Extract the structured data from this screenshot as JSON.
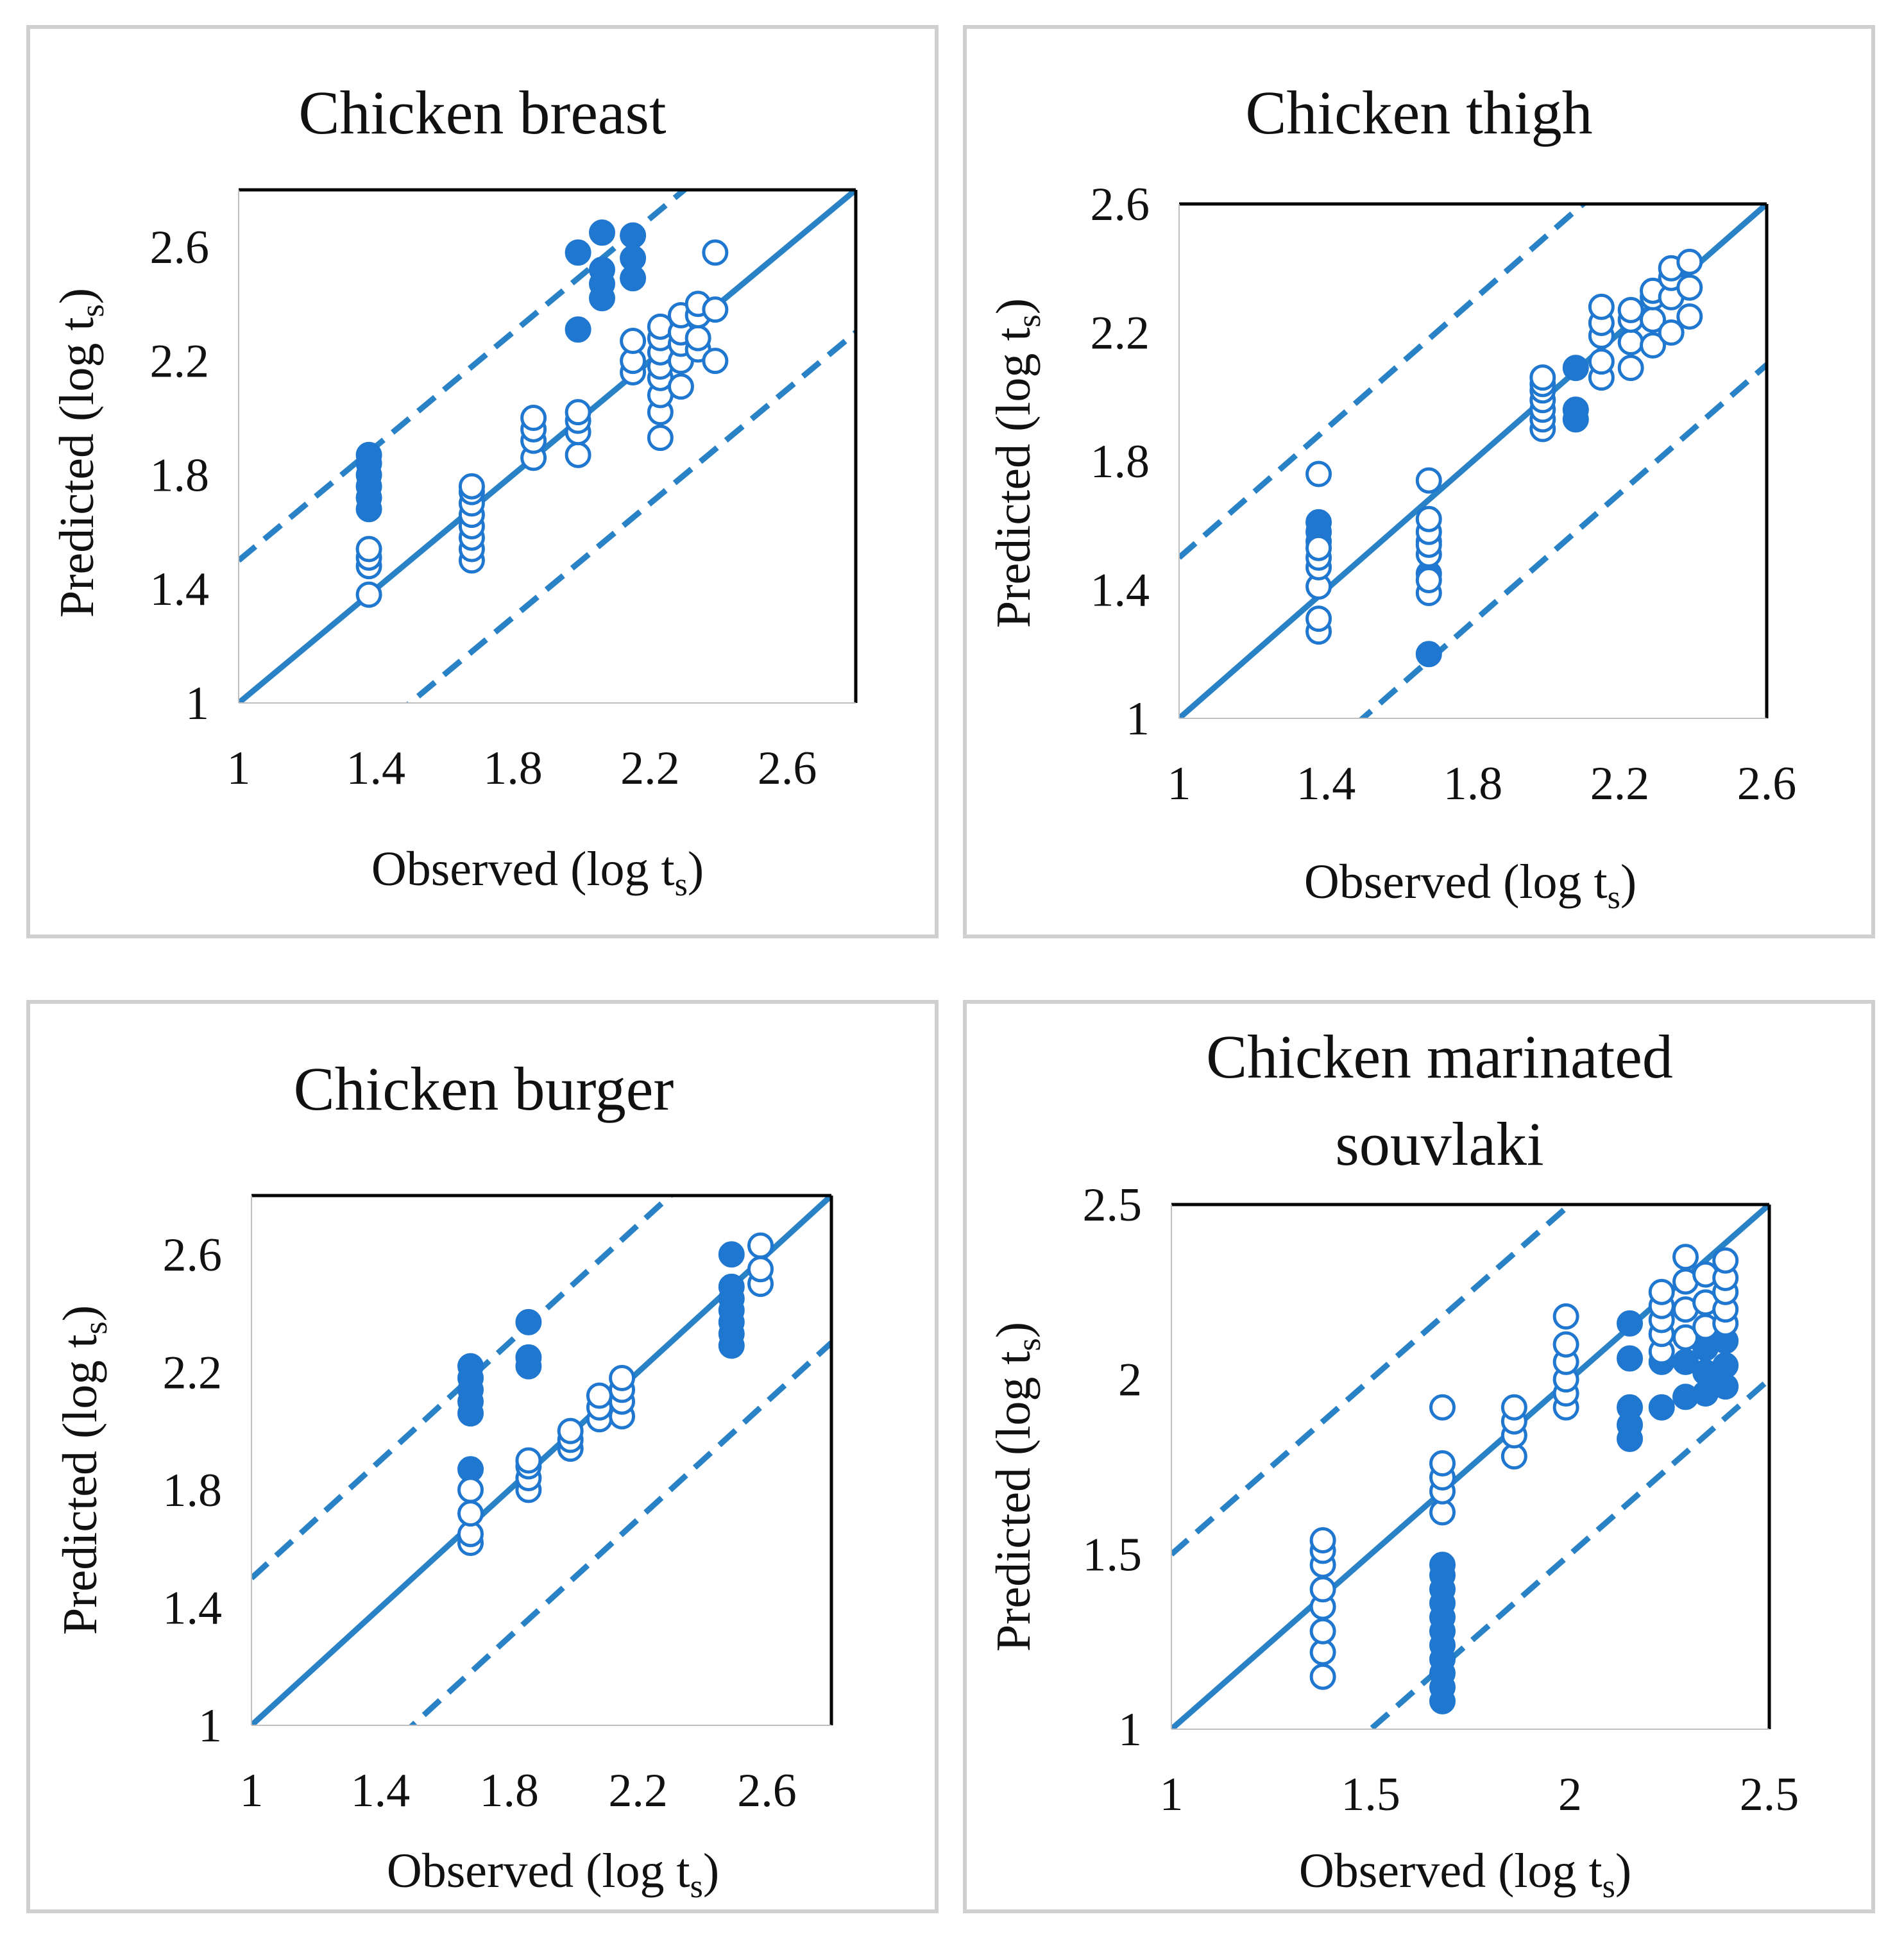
{
  "colors": {
    "marker": "#1f77d0",
    "ideal_line": "#2a82c6",
    "frame": "#d0d0d0",
    "axis": "#000000"
  },
  "chart_data": [
    {
      "type": "scatter",
      "title": [
        "Chicken breast"
      ],
      "xlabel": {
        "main": "Observed (log t",
        "sub": "s",
        "close": ")"
      },
      "ylabel": {
        "main": "Predicted (log t",
        "sub": "s",
        "close": ")"
      },
      "xlim": [
        1,
        2.8
      ],
      "ylim": [
        1,
        2.8
      ],
      "xticks": [
        "1",
        "1.4",
        "1.8",
        "2.2",
        "2.6"
      ],
      "yticks": [
        "1",
        "1.4",
        "1.8",
        "2.2",
        "2.6"
      ],
      "lines": [
        {
          "name": "line of equivalence",
          "offset": 0,
          "style": "solid"
        },
        {
          "name": "upper bound",
          "offset": 0.5,
          "style": "dashed"
        },
        {
          "name": "lower bound",
          "offset": -0.5,
          "style": "dashed"
        }
      ],
      "series": [
        {
          "name": "filled",
          "filled": true,
          "points": [
            [
              1.38,
              1.68
            ],
            [
              1.38,
              1.72
            ],
            [
              1.38,
              1.76
            ],
            [
              1.38,
              1.8
            ],
            [
              1.38,
              1.84
            ],
            [
              1.38,
              1.87
            ],
            [
              1.99,
              2.58
            ],
            [
              1.99,
              2.31
            ],
            [
              2.06,
              2.65
            ],
            [
              2.06,
              2.52
            ],
            [
              2.06,
              2.47
            ],
            [
              2.06,
              2.42
            ],
            [
              2.15,
              2.64
            ],
            [
              2.15,
              2.56
            ],
            [
              2.15,
              2.49
            ]
          ]
        },
        {
          "name": "open",
          "filled": false,
          "points": [
            [
              1.38,
              1.38
            ],
            [
              1.38,
              1.48
            ],
            [
              1.38,
              1.51
            ],
            [
              1.38,
              1.54
            ],
            [
              1.68,
              1.5
            ],
            [
              1.68,
              1.54
            ],
            [
              1.68,
              1.58
            ],
            [
              1.68,
              1.62
            ],
            [
              1.68,
              1.66
            ],
            [
              1.68,
              1.7
            ],
            [
              1.68,
              1.74
            ],
            [
              1.68,
              1.76
            ],
            [
              1.86,
              1.86
            ],
            [
              1.86,
              1.92
            ],
            [
              1.86,
              1.96
            ],
            [
              1.86,
              2.0
            ],
            [
              1.99,
              1.87
            ],
            [
              1.99,
              1.95
            ],
            [
              1.99,
              1.99
            ],
            [
              1.99,
              2.02
            ],
            [
              2.15,
              2.16
            ],
            [
              2.15,
              2.2
            ],
            [
              2.15,
              2.27
            ],
            [
              2.23,
              1.93
            ],
            [
              2.23,
              2.02
            ],
            [
              2.23,
              2.08
            ],
            [
              2.23,
              2.14
            ],
            [
              2.23,
              2.18
            ],
            [
              2.23,
              2.23
            ],
            [
              2.23,
              2.28
            ],
            [
              2.23,
              2.32
            ],
            [
              2.29,
              2.11
            ],
            [
              2.29,
              2.2
            ],
            [
              2.29,
              2.26
            ],
            [
              2.29,
              2.3
            ],
            [
              2.29,
              2.36
            ],
            [
              2.34,
              2.24
            ],
            [
              2.34,
              2.28
            ],
            [
              2.34,
              2.36
            ],
            [
              2.34,
              2.4
            ],
            [
              2.39,
              2.2
            ],
            [
              2.39,
              2.38
            ],
            [
              2.39,
              2.58
            ]
          ]
        }
      ]
    },
    {
      "type": "scatter",
      "title": [
        "Chicken thigh"
      ],
      "xlabel": {
        "main": "Observed (log t",
        "sub": "s",
        "close": ")"
      },
      "ylabel": {
        "main": "Predicted (log t",
        "sub": "s",
        "close": ")"
      },
      "xlim": [
        1,
        2.6
      ],
      "ylim": [
        1,
        2.6
      ],
      "xticks": [
        "1",
        "1.4",
        "1.8",
        "2.2",
        "2.6"
      ],
      "yticks": [
        "1",
        "1.4",
        "1.8",
        "2.2",
        "2.6"
      ],
      "lines": [
        {
          "name": "line of equivalence",
          "offset": 0,
          "style": "solid"
        },
        {
          "name": "upper bound",
          "offset": 0.5,
          "style": "dashed"
        },
        {
          "name": "lower bound",
          "offset": -0.5,
          "style": "dashed"
        }
      ],
      "series": [
        {
          "name": "filled",
          "filled": true,
          "points": [
            [
              1.38,
              1.58
            ],
            [
              1.38,
              1.61
            ],
            [
              1.38,
              1.55
            ],
            [
              1.68,
              1.2
            ],
            [
              1.68,
              1.55
            ],
            [
              1.68,
              1.45
            ],
            [
              2.08,
              2.09
            ],
            [
              2.08,
              1.96
            ],
            [
              2.08,
              1.93
            ]
          ]
        },
        {
          "name": "open",
          "filled": false,
          "points": [
            [
              1.38,
              1.27
            ],
            [
              1.38,
              1.31
            ],
            [
              1.38,
              1.41
            ],
            [
              1.38,
              1.47
            ],
            [
              1.38,
              1.5
            ],
            [
              1.38,
              1.53
            ],
            [
              1.38,
              1.76
            ],
            [
              1.68,
              1.39
            ],
            [
              1.68,
              1.43
            ],
            [
              1.68,
              1.51
            ],
            [
              1.68,
              1.54
            ],
            [
              1.68,
              1.58
            ],
            [
              1.68,
              1.62
            ],
            [
              1.68,
              1.74
            ],
            [
              1.99,
              1.9
            ],
            [
              1.99,
              1.93
            ],
            [
              1.99,
              1.96
            ],
            [
              1.99,
              1.99
            ],
            [
              1.99,
              2.02
            ],
            [
              1.99,
              2.04
            ],
            [
              1.99,
              2.06
            ],
            [
              2.15,
              2.06
            ],
            [
              2.15,
              2.11
            ],
            [
              2.15,
              2.19
            ],
            [
              2.15,
              2.23
            ],
            [
              2.15,
              2.28
            ],
            [
              2.23,
              2.09
            ],
            [
              2.23,
              2.17
            ],
            [
              2.23,
              2.24
            ],
            [
              2.23,
              2.27
            ],
            [
              2.29,
              2.16
            ],
            [
              2.29,
              2.24
            ],
            [
              2.29,
              2.31
            ],
            [
              2.29,
              2.33
            ],
            [
              2.34,
              2.2
            ],
            [
              2.34,
              2.31
            ],
            [
              2.34,
              2.37
            ],
            [
              2.34,
              2.4
            ],
            [
              2.39,
              2.25
            ],
            [
              2.39,
              2.34
            ],
            [
              2.39,
              2.42
            ]
          ]
        }
      ]
    },
    {
      "type": "scatter",
      "title": [
        "Chicken burger"
      ],
      "xlabel": {
        "main": "Observed (log t",
        "sub": "s",
        "close": ")"
      },
      "ylabel": {
        "main": "Predicted (log t",
        "sub": "s",
        "close": ")"
      },
      "xlim": [
        1,
        2.8
      ],
      "ylim": [
        1,
        2.8
      ],
      "xticks": [
        "1",
        "1.4",
        "1.8",
        "2.2",
        "2.6"
      ],
      "yticks": [
        "1",
        "1.4",
        "1.8",
        "2.2",
        "2.6"
      ],
      "lines": [
        {
          "name": "line of equivalence",
          "offset": 0,
          "style": "solid"
        },
        {
          "name": "upper bound",
          "offset": 0.5,
          "style": "dashed"
        },
        {
          "name": "lower bound",
          "offset": -0.5,
          "style": "dashed"
        }
      ],
      "series": [
        {
          "name": "filled",
          "filled": true,
          "points": [
            [
              1.68,
              2.06
            ],
            [
              1.68,
              2.1
            ],
            [
              1.68,
              2.14
            ],
            [
              1.68,
              2.18
            ],
            [
              1.68,
              2.22
            ],
            [
              1.68,
              1.87
            ],
            [
              1.86,
              2.37
            ],
            [
              1.86,
              2.25
            ],
            [
              1.86,
              2.22
            ],
            [
              2.49,
              2.29
            ],
            [
              2.49,
              2.33
            ],
            [
              2.49,
              2.37
            ],
            [
              2.49,
              2.41
            ],
            [
              2.49,
              2.45
            ],
            [
              2.49,
              2.49
            ],
            [
              2.49,
              2.6
            ]
          ]
        },
        {
          "name": "open",
          "filled": false,
          "points": [
            [
              1.68,
              1.62
            ],
            [
              1.68,
              1.65
            ],
            [
              1.68,
              1.72
            ],
            [
              1.68,
              1.8
            ],
            [
              1.86,
              1.8
            ],
            [
              1.86,
              1.84
            ],
            [
              1.86,
              1.88
            ],
            [
              1.86,
              1.9
            ],
            [
              1.99,
              1.94
            ],
            [
              1.99,
              1.97
            ],
            [
              1.99,
              2.0
            ],
            [
              2.08,
              2.04
            ],
            [
              2.08,
              2.08
            ],
            [
              2.08,
              2.12
            ],
            [
              2.15,
              2.05
            ],
            [
              2.15,
              2.1
            ],
            [
              2.15,
              2.14
            ],
            [
              2.15,
              2.18
            ],
            [
              2.58,
              2.5
            ],
            [
              2.58,
              2.55
            ],
            [
              2.58,
              2.63
            ]
          ]
        }
      ]
    },
    {
      "type": "scatter",
      "title": [
        "Chicken marinated",
        "souvlaki"
      ],
      "xlabel": {
        "main": "Observed (log t",
        "sub": "s",
        "close": ")"
      },
      "ylabel": {
        "main": "Predicted (log t",
        "sub": "s",
        "close": ")"
      },
      "xlim": [
        1,
        2.5
      ],
      "ylim": [
        1,
        2.5
      ],
      "xticks": [
        "1",
        "1.5",
        "2",
        "2.5"
      ],
      "yticks": [
        "1",
        "1.5",
        "2",
        "2.5"
      ],
      "lines": [
        {
          "name": "line of equivalence",
          "offset": 0,
          "style": "solid"
        },
        {
          "name": "upper bound",
          "offset": 0.5,
          "style": "dashed"
        },
        {
          "name": "lower bound",
          "offset": -0.5,
          "style": "dashed"
        }
      ],
      "series": [
        {
          "name": "filled",
          "filled": true,
          "points": [
            [
              1.68,
              1.08
            ],
            [
              1.68,
              1.12
            ],
            [
              1.68,
              1.16
            ],
            [
              1.68,
              1.2
            ],
            [
              1.68,
              1.24
            ],
            [
              1.68,
              1.28
            ],
            [
              1.68,
              1.32
            ],
            [
              1.68,
              1.36
            ],
            [
              1.68,
              1.4
            ],
            [
              1.68,
              1.44
            ],
            [
              1.68,
              1.47
            ],
            [
              2.15,
              1.83
            ],
            [
              2.15,
              1.87
            ],
            [
              2.15,
              1.92
            ],
            [
              2.15,
              2.06
            ],
            [
              2.15,
              2.16
            ],
            [
              2.23,
              1.92
            ],
            [
              2.23,
              2.05
            ],
            [
              2.23,
              2.13
            ],
            [
              2.29,
              1.95
            ],
            [
              2.29,
              2.05
            ],
            [
              2.34,
              1.96
            ],
            [
              2.34,
              2.02
            ],
            [
              2.34,
              2.09
            ],
            [
              2.39,
              1.98
            ],
            [
              2.39,
              2.04
            ],
            [
              2.39,
              2.11
            ]
          ]
        },
        {
          "name": "open",
          "filled": false,
          "points": [
            [
              1.38,
              1.15
            ],
            [
              1.38,
              1.22
            ],
            [
              1.38,
              1.28
            ],
            [
              1.38,
              1.35
            ],
            [
              1.38,
              1.4
            ],
            [
              1.38,
              1.47
            ],
            [
              1.38,
              1.51
            ],
            [
              1.38,
              1.54
            ],
            [
              1.68,
              1.62
            ],
            [
              1.68,
              1.68
            ],
            [
              1.68,
              1.72
            ],
            [
              1.68,
              1.76
            ],
            [
              1.68,
              1.92
            ],
            [
              1.86,
              1.78
            ],
            [
              1.86,
              1.84
            ],
            [
              1.86,
              1.88
            ],
            [
              1.86,
              1.92
            ],
            [
              1.99,
              1.92
            ],
            [
              1.99,
              1.96
            ],
            [
              1.99,
              2.0
            ],
            [
              1.99,
              2.05
            ],
            [
              1.99,
              2.1
            ],
            [
              1.99,
              2.18
            ],
            [
              2.23,
              2.08
            ],
            [
              2.23,
              2.13
            ],
            [
              2.23,
              2.17
            ],
            [
              2.23,
              2.21
            ],
            [
              2.23,
              2.25
            ],
            [
              2.29,
              2.12
            ],
            [
              2.29,
              2.2
            ],
            [
              2.29,
              2.28
            ],
            [
              2.29,
              2.35
            ],
            [
              2.34,
              2.15
            ],
            [
              2.34,
              2.22
            ],
            [
              2.34,
              2.3
            ],
            [
              2.39,
              2.16
            ],
            [
              2.39,
              2.2
            ],
            [
              2.39,
              2.25
            ],
            [
              2.39,
              2.29
            ],
            [
              2.39,
              2.34
            ]
          ]
        }
      ]
    }
  ]
}
